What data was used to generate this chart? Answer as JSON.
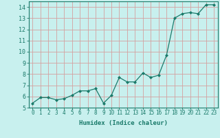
{
  "x": [
    0,
    1,
    2,
    3,
    4,
    5,
    6,
    7,
    8,
    9,
    10,
    11,
    12,
    13,
    14,
    15,
    16,
    17,
    18,
    19,
    20,
    21,
    22,
    23
  ],
  "y": [
    5.4,
    5.9,
    5.9,
    5.7,
    5.8,
    6.1,
    6.5,
    6.5,
    6.7,
    5.4,
    6.1,
    7.7,
    7.3,
    7.3,
    8.1,
    7.7,
    7.9,
    9.7,
    13.0,
    13.4,
    13.5,
    13.4,
    14.2,
    14.2
  ],
  "xlim": [
    -0.5,
    23.5
  ],
  "ylim": [
    5,
    14.5
  ],
  "yticks": [
    5,
    6,
    7,
    8,
    9,
    10,
    11,
    12,
    13,
    14
  ],
  "xticks": [
    0,
    1,
    2,
    3,
    4,
    5,
    6,
    7,
    8,
    9,
    10,
    11,
    12,
    13,
    14,
    15,
    16,
    17,
    18,
    19,
    20,
    21,
    22,
    23
  ],
  "xlabel": "Humidex (Indice chaleur)",
  "line_color": "#1a7a6a",
  "marker": "D",
  "marker_size": 2.0,
  "bg_color": "#c8f0ee",
  "grid_color": "#d4a0a0",
  "xlabel_fontsize": 6.5,
  "tick_fontsize": 5.5
}
